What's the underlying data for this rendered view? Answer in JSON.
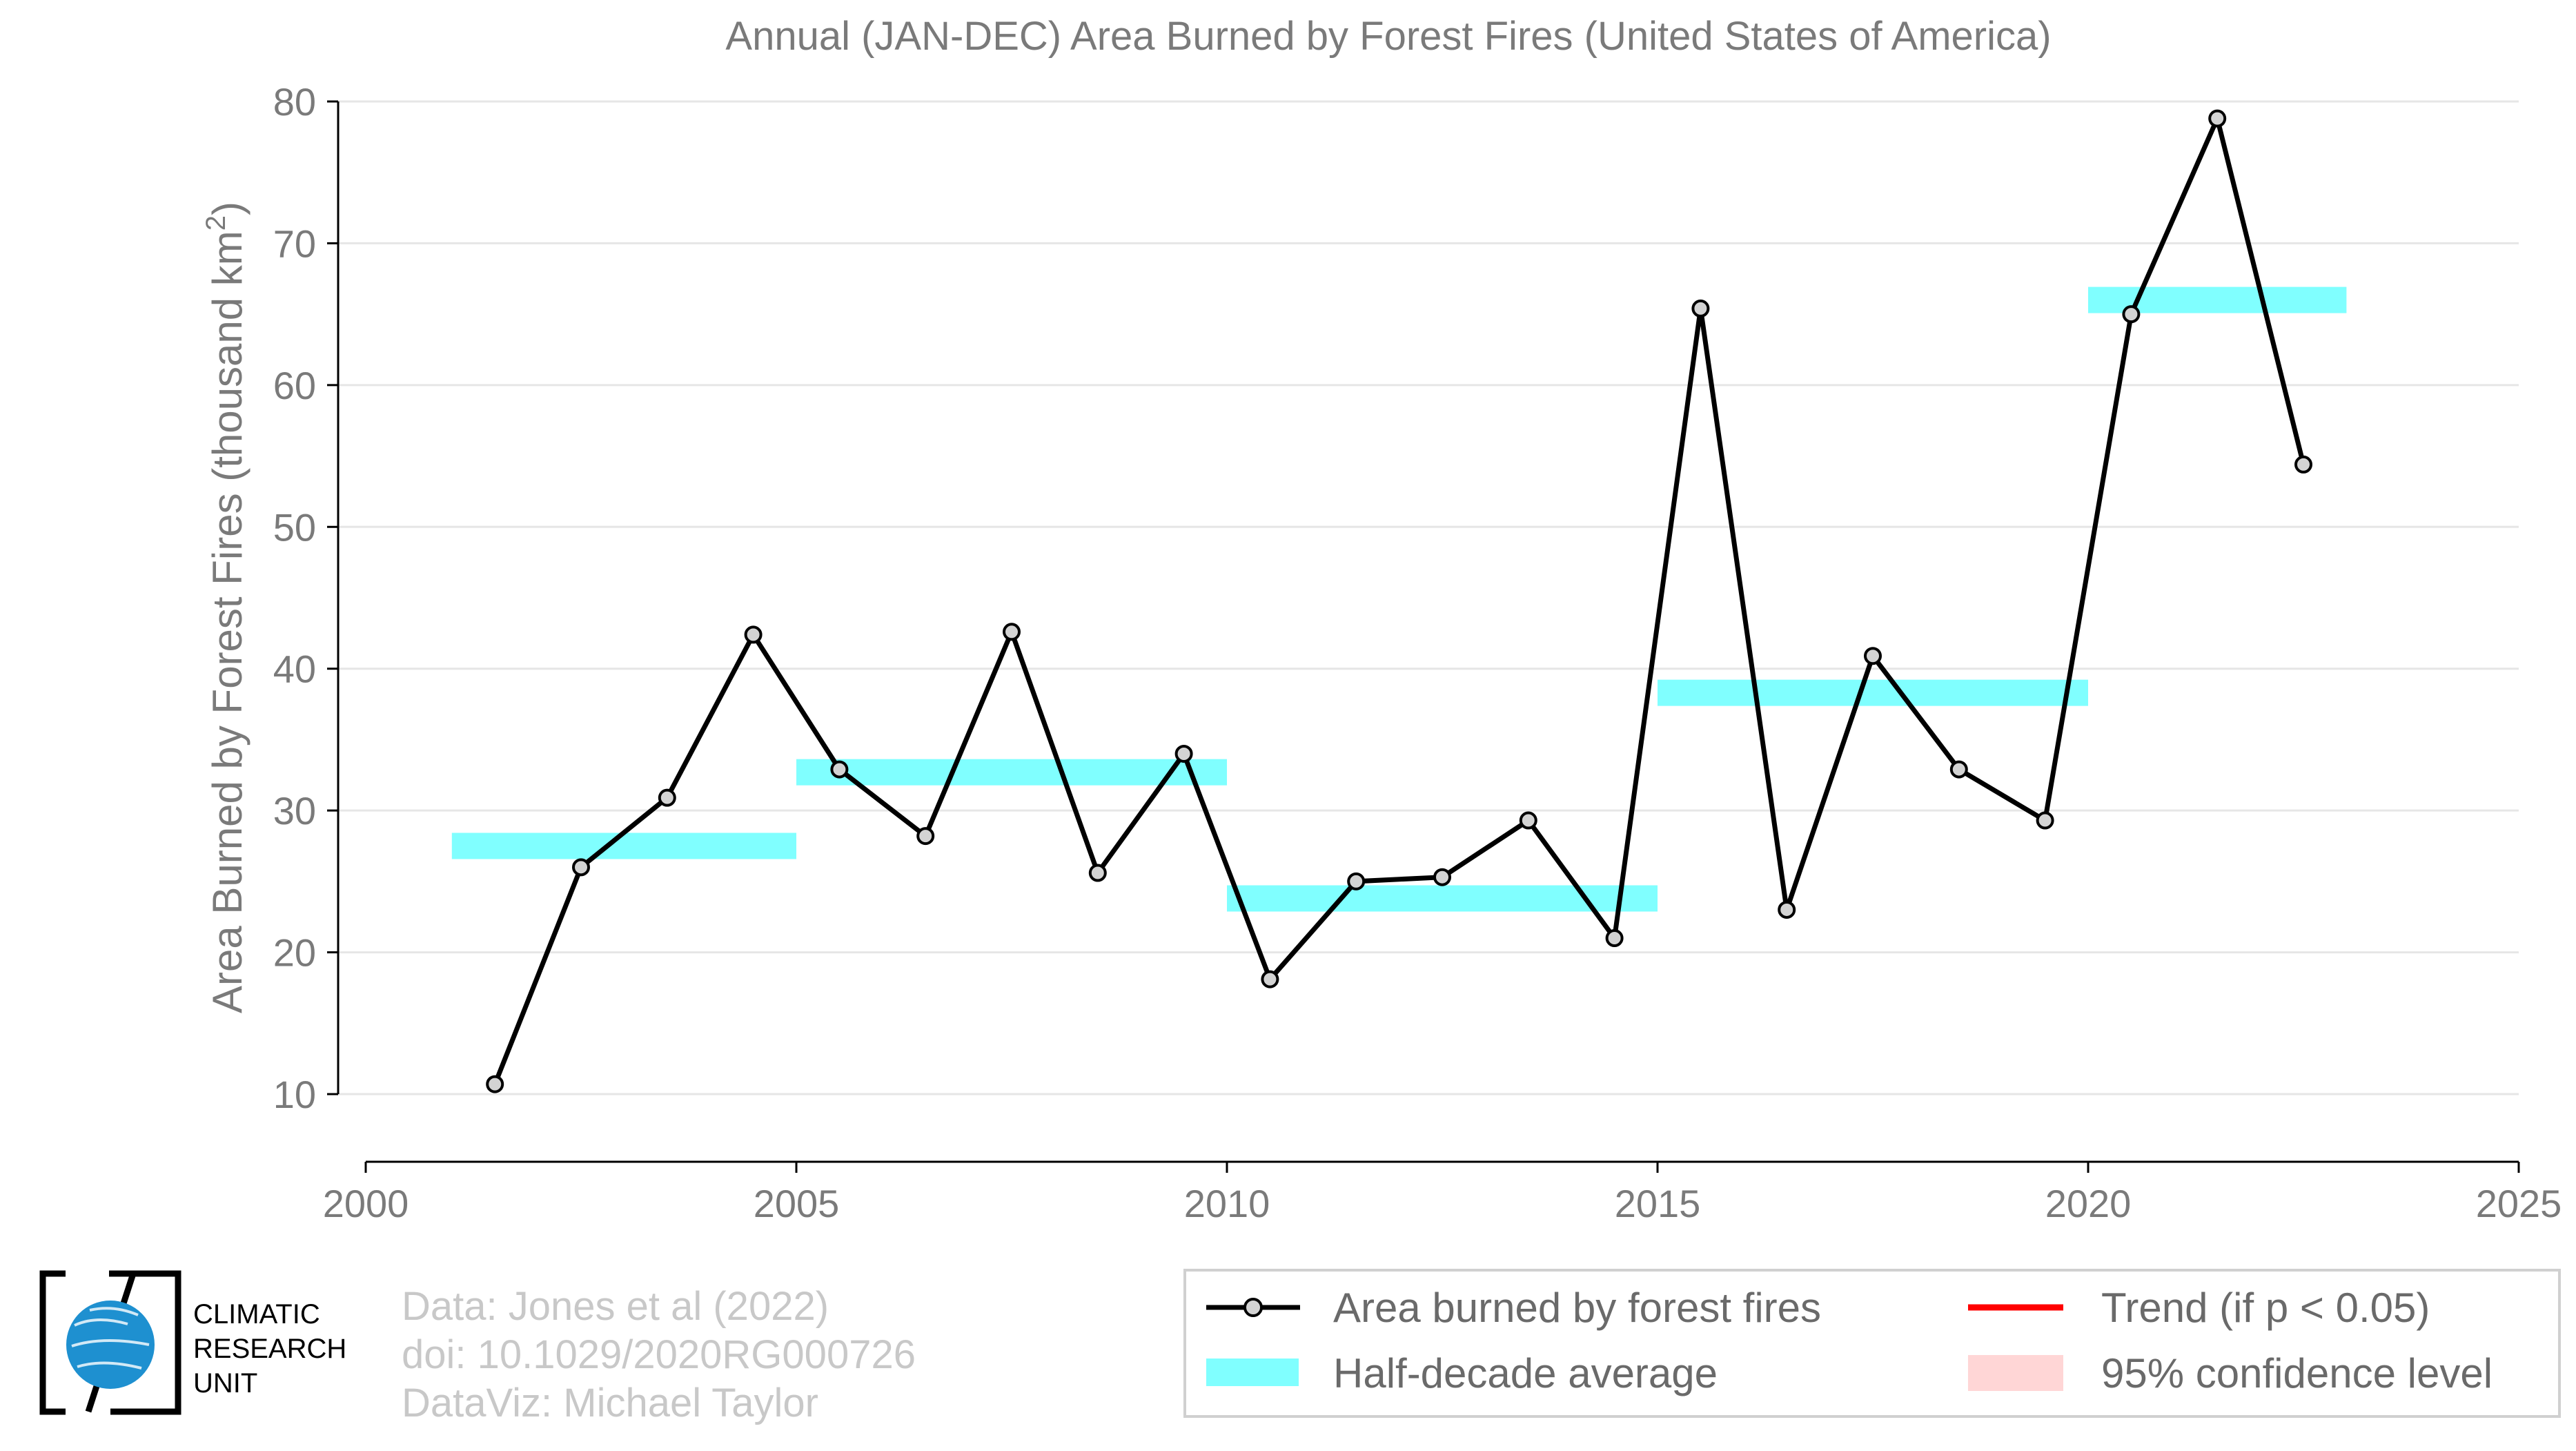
{
  "chart_data": {
    "type": "line",
    "title": "Annual (JAN-DEC) Area Burned by Forest Fires (United States of America)",
    "ylabel_main": "Area Burned by Forest Fires (thousand km",
    "ylabel_sup": "2",
    "ylabel_close": ")",
    "xlim": [
      2000,
      2025
    ],
    "ylim": [
      5,
      81
    ],
    "x_ticks": [
      2000,
      2005,
      2010,
      2015,
      2020,
      2025
    ],
    "y_ticks": [
      10,
      20,
      30,
      40,
      50,
      60,
      70,
      80
    ],
    "grid": "horizontal",
    "legend_position": "bottom-right",
    "series": [
      {
        "name": "Area burned by forest fires",
        "color": "#000000",
        "marker_fill": "#d3d3d3",
        "x": [
          2001.5,
          2002.5,
          2003.5,
          2004.5,
          2005.5,
          2006.5,
          2007.5,
          2008.5,
          2009.5,
          2010.5,
          2011.5,
          2012.5,
          2013.5,
          2014.5,
          2015.5,
          2016.5,
          2017.5,
          2018.5,
          2019.5,
          2020.5,
          2021.5,
          2022.5
        ],
        "y": [
          10.7,
          26.0,
          30.9,
          42.4,
          32.9,
          28.2,
          42.6,
          25.6,
          34.0,
          18.1,
          25.0,
          25.3,
          29.3,
          21.0,
          65.4,
          23.0,
          40.9,
          32.9,
          29.3,
          65.0,
          78.8,
          54.4
        ]
      }
    ],
    "half_decade_average": {
      "name": "Half-decade average",
      "color": "#80ffff",
      "segments": [
        {
          "x0": 2001,
          "x1": 2005,
          "y": 27.5
        },
        {
          "x0": 2005,
          "x1": 2010,
          "y": 32.7
        },
        {
          "x0": 2010,
          "x1": 2015,
          "y": 23.8
        },
        {
          "x0": 2015,
          "x1": 2020,
          "y": 38.3
        },
        {
          "x0": 2020,
          "x1": 2023,
          "y": 66.0
        }
      ]
    },
    "legend": {
      "series_label": "Area burned by forest fires",
      "average_label": "Half-decade average",
      "trend_label": "Trend (if p < 0.05)",
      "trend_color": "#ff0000",
      "confidence_label": "95% confidence level",
      "confidence_color": "#ffd6d6"
    }
  },
  "credits": {
    "line1": "Data: Jones et al (2022)",
    "line2": "doi: 10.1029/2020RG000726",
    "line3": "DataViz: Michael Taylor"
  },
  "logo": {
    "line1": "CLIMATIC",
    "line2": "RESEARCH",
    "line3": "UNIT",
    "globe_color": "#1e90d0"
  }
}
